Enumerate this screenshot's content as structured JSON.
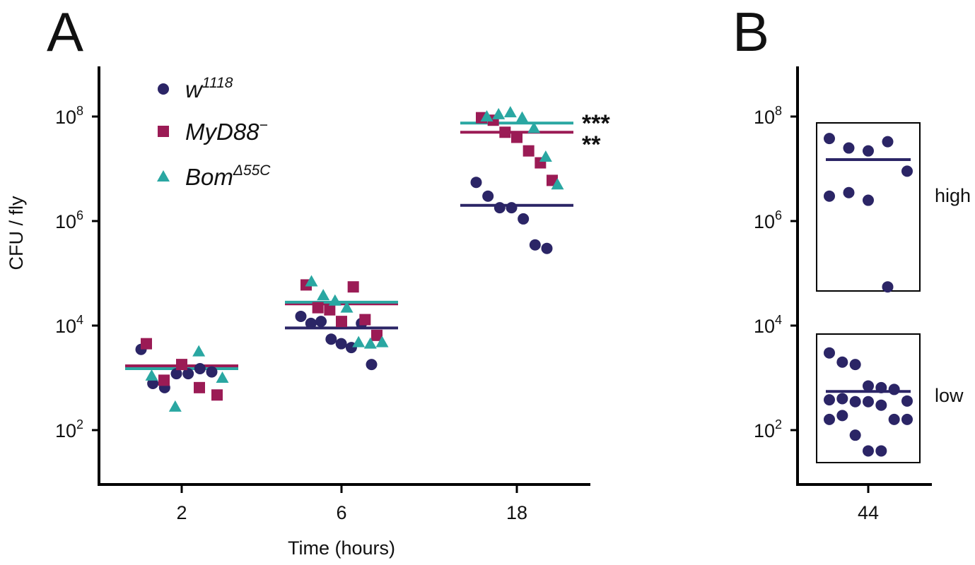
{
  "panels": {
    "a": "A",
    "b": "B"
  },
  "chart_data": [
    {
      "type": "scatter",
      "panel": "A",
      "xlabel": "Time (hours)",
      "ylabel": "CFU / fly",
      "y_scale": "log",
      "ylim": [
        10,
        1000000000
      ],
      "y_ticks": [
        {
          "base": "10",
          "exp": "2"
        },
        {
          "base": "10",
          "exp": "4"
        },
        {
          "base": "10",
          "exp": "6"
        },
        {
          "base": "10",
          "exp": "8"
        }
      ],
      "categories": [
        "2",
        "6",
        "18"
      ],
      "legend": {
        "position": "top-left"
      },
      "series": [
        {
          "name_base": "w",
          "name_sup": "1118",
          "marker": "circle",
          "color": "#2b2566",
          "points": [
            [
              3500,
              780,
              650,
              1200,
              1200,
              1500,
              1300
            ],
            [
              15000,
              11000,
              12000,
              5500,
              4500,
              3800,
              11000,
              1800
            ],
            [
              5500000,
              3000000,
              1800000,
              1800000,
              1100000,
              350000,
              300000
            ]
          ],
          "medians": [
            1700,
            9000,
            2000000
          ]
        },
        {
          "name_base": "MyD88",
          "name_sup": "−",
          "marker": "square",
          "color": "#9b1b55",
          "points": [
            [
              4500,
              900,
              1800,
              650,
              470
            ],
            [
              60000,
              22000,
              20000,
              12000,
              55000,
              13000,
              6500
            ],
            [
              95000000,
              85000000,
              50000000,
              40000000,
              22000000,
              13000000,
              6000000
            ]
          ],
          "medians": [
            1700,
            26000,
            50000000
          ]
        },
        {
          "name_base": "Bom",
          "name_sup": "Δ55C",
          "marker": "triangle",
          "color": "#2aa7a2",
          "points": [
            [
              1100,
              280,
              3200,
              1000
            ],
            [
              70000,
              38000,
              30000,
              22000,
              4800,
              4500,
              4800
            ],
            [
              100000000,
              110000000,
              120000000,
              95000000,
              60000000,
              17000000,
              5000000
            ]
          ],
          "medians": [
            1500,
            28000,
            75000000
          ]
        }
      ],
      "annotations": [
        {
          "text": "***",
          "color": "#1f9d96"
        },
        {
          "text": "**",
          "color": "#9b1b55"
        }
      ]
    },
    {
      "type": "scatter",
      "panel": "B",
      "y_scale": "log",
      "ylim": [
        10,
        1000000000
      ],
      "y_ticks": [
        {
          "base": "10",
          "exp": "2"
        },
        {
          "base": "10",
          "exp": "4"
        },
        {
          "base": "10",
          "exp": "6"
        },
        {
          "base": "10",
          "exp": "8"
        }
      ],
      "categories": [
        "44"
      ],
      "series": [
        {
          "marker": "circle",
          "color": "#2b2566",
          "groups": [
            {
              "label": "high",
              "values": [
                38000000,
                25000000,
                22000000,
                33000000,
                9000000,
                3000000,
                3500000,
                2500000,
                55000
              ],
              "median": 15000000
            },
            {
              "label": "low",
              "values": [
                3000,
                2000,
                1800,
                700,
                650,
                600,
                360,
                380,
                400,
                350,
                350,
                300,
                160,
                160,
                160,
                190,
                80,
                40,
                40
              ],
              "median": 550
            }
          ]
        }
      ]
    }
  ]
}
